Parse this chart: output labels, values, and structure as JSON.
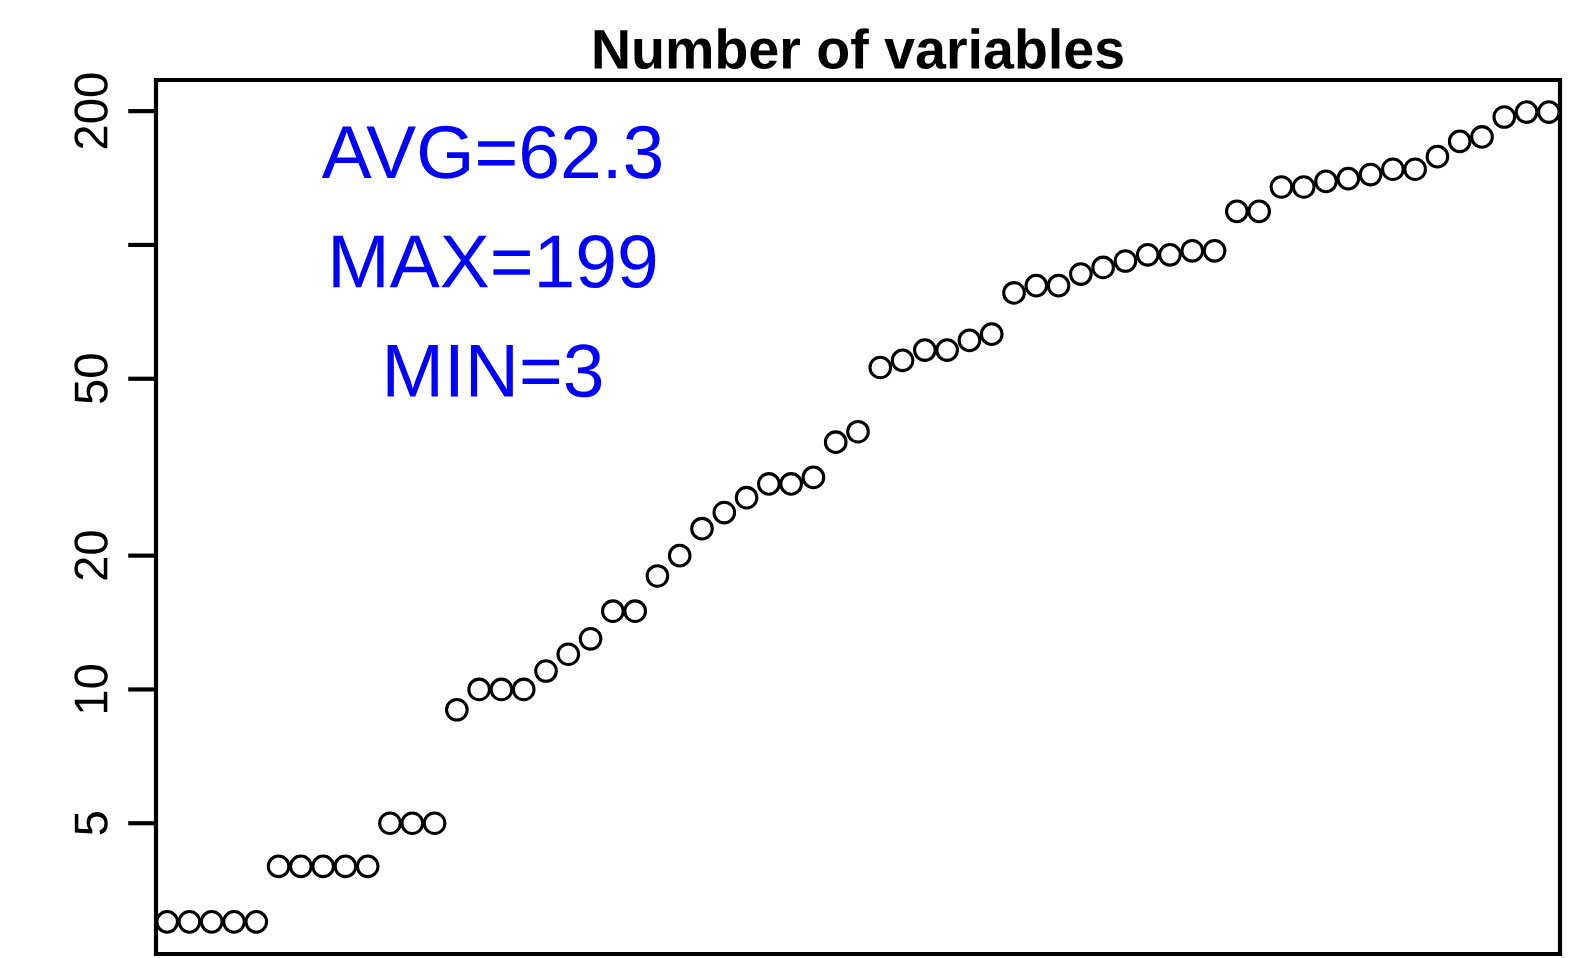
{
  "chart_data": {
    "type": "scatter",
    "title": "Number of variables",
    "categories": [
      null,
      null,
      null,
      null,
      null,
      null,
      null,
      null,
      null,
      null,
      null,
      null,
      null,
      null,
      null,
      null,
      null,
      null,
      null,
      null,
      null,
      null,
      null,
      null,
      null,
      null,
      null,
      null,
      null,
      null,
      null,
      null,
      null,
      null,
      null,
      null,
      null,
      null,
      null,
      null,
      null,
      null,
      null,
      null,
      null,
      null,
      null,
      null,
      null,
      null,
      null,
      null,
      null,
      null,
      null,
      null,
      null,
      null,
      null,
      null,
      null,
      null,
      null
    ],
    "series": [
      {
        "color": "#000000",
        "values": [
          3,
          3,
          3,
          3,
          3,
          4,
          4,
          4,
          4,
          4,
          5,
          5,
          5,
          9,
          10,
          10,
          10,
          11,
          12,
          13,
          15,
          15,
          18,
          20,
          23,
          25,
          27,
          29,
          29,
          30,
          36,
          38,
          53,
          55,
          58,
          58,
          61,
          63,
          78,
          81,
          81,
          86,
          89,
          92,
          95,
          95,
          97,
          97,
          119,
          119,
          135,
          135,
          139,
          141,
          144,
          148,
          148,
          158,
          171,
          175,
          194,
          199,
          199
        ]
      }
    ],
    "log": true,
    "ylim": [
      2.54,
      235
    ],
    "yticks": [
      5,
      10,
      20,
      50,
      {
        "value": 100,
        "label": null
      },
      200
    ],
    "marker": "circle",
    "grid": false,
    "legend": false,
    "annotations": [
      "AVG=62.3",
      "MAX=199",
      "MIN=3"
    ]
  }
}
